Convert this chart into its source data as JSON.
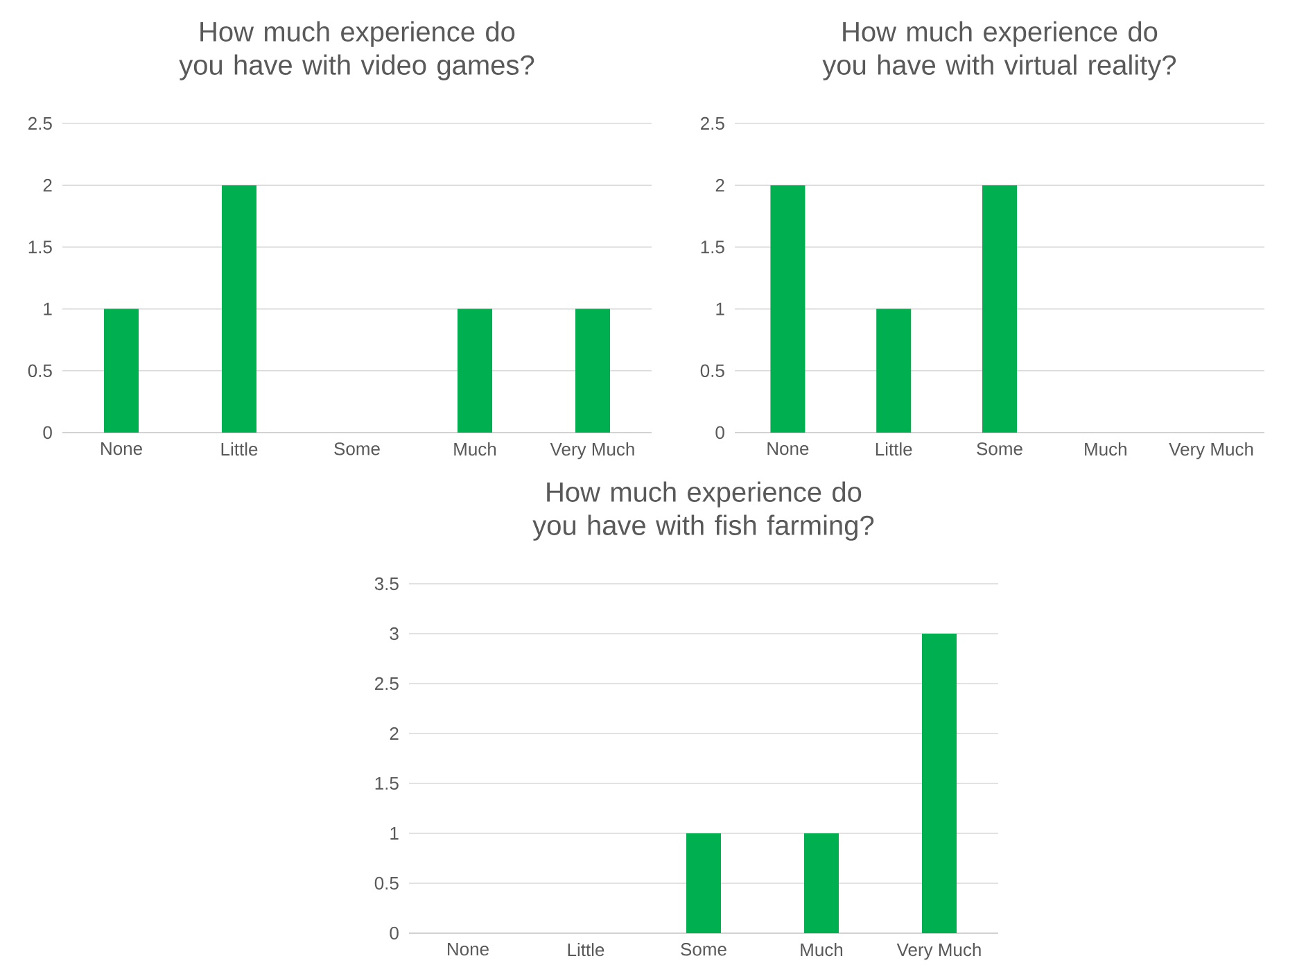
{
  "chart_data": [
    {
      "type": "bar",
      "title": "How much experience do you have with video games?",
      "categories": [
        "None",
        "Little",
        "Some",
        "Much",
        "Very Much"
      ],
      "values": [
        1,
        2,
        0,
        1,
        1
      ],
      "color": "#00b050",
      "ylim": [
        0,
        2.5
      ],
      "yticks": [
        0,
        0.5,
        1,
        1.5,
        2,
        2.5
      ],
      "grid": "y"
    },
    {
      "type": "bar",
      "title": "How much experience do you have with virtual reality?",
      "categories": [
        "None",
        "Little",
        "Some",
        "Much",
        "Very Much"
      ],
      "values": [
        2,
        1,
        2,
        0,
        0
      ],
      "color": "#00b050",
      "ylim": [
        0,
        2.5
      ],
      "yticks": [
        0,
        0.5,
        1,
        1.5,
        2,
        2.5
      ],
      "grid": "y"
    },
    {
      "type": "bar",
      "title": "How much experience do you have with fish farming?",
      "categories": [
        "None",
        "Little",
        "Some",
        "Much",
        "Very Much"
      ],
      "values": [
        0,
        0,
        1,
        1,
        3
      ],
      "color": "#00b050",
      "ylim": [
        0,
        3.5
      ],
      "yticks": [
        0,
        0.5,
        1,
        1.5,
        2,
        2.5,
        3,
        3.5
      ],
      "grid": "y"
    }
  ]
}
